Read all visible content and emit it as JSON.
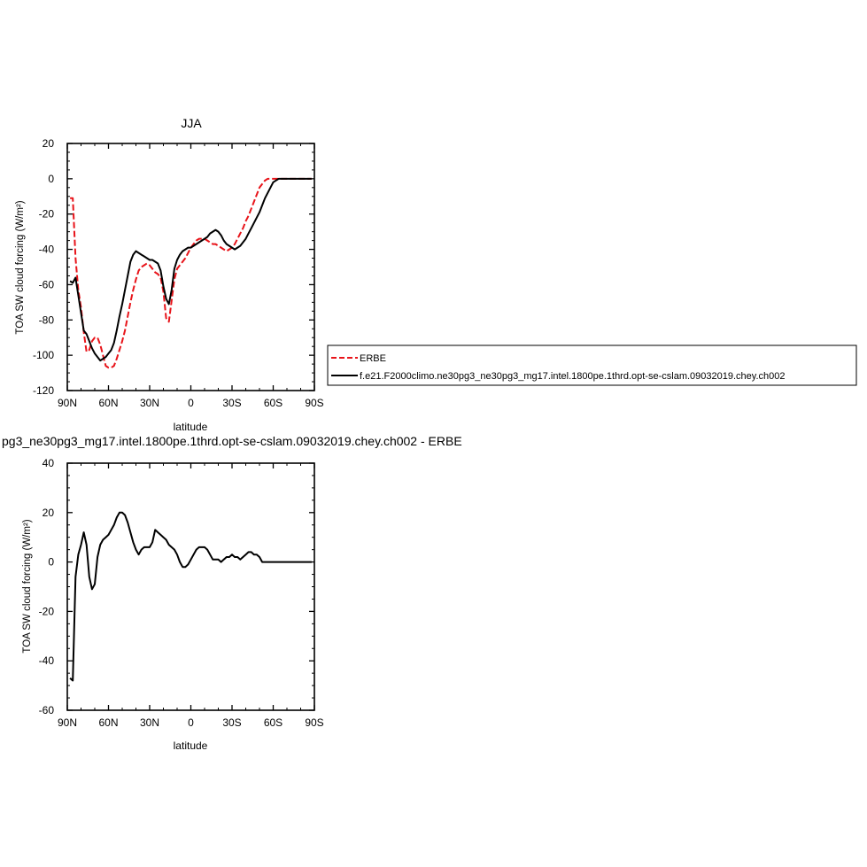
{
  "chart_data": [
    {
      "type": "line",
      "title": "JJA",
      "xlabel": "latitude",
      "ylabel": "TOA SW cloud forcing (W/m²)",
      "xlim": [
        90,
        -90
      ],
      "ylim": [
        -120,
        20
      ],
      "x_ticks": [
        90,
        60,
        30,
        0,
        -30,
        -60,
        -90
      ],
      "x_tick_labels": [
        "90N",
        "60N",
        "30N",
        "0",
        "30S",
        "60S",
        "90S"
      ],
      "y_ticks": [
        20,
        0,
        -20,
        -40,
        -60,
        -80,
        -100,
        -120
      ],
      "y_tick_labels": [
        "20",
        "0",
        "-20",
        "-40",
        "-60",
        "-80",
        "-100",
        "-120"
      ],
      "legend_position": "right of plot",
      "series": [
        {
          "name": "ERBE",
          "color": "#e8141a",
          "dash": true,
          "x": [
            88,
            86,
            84,
            82,
            80,
            78,
            76,
            74,
            72,
            70,
            68,
            66,
            64,
            62,
            60,
            58,
            56,
            54,
            52,
            50,
            48,
            46,
            44,
            42,
            40,
            38,
            36,
            34,
            32,
            30,
            28,
            26,
            24,
            22,
            20,
            18,
            16,
            14,
            12,
            10,
            8,
            6,
            4,
            2,
            0,
            -2,
            -4,
            -6,
            -8,
            -10,
            -12,
            -14,
            -16,
            -18,
            -20,
            -22,
            -24,
            -26,
            -28,
            -30,
            -32,
            -34,
            -36,
            -38,
            -40,
            -42,
            -44,
            -46,
            -48,
            -50,
            -52,
            -54,
            -56,
            -58,
            -60,
            -62,
            -64,
            -66,
            -68,
            -70,
            -72,
            -74,
            -76,
            -78,
            -80,
            -82,
            -84,
            -86,
            -88
          ],
          "values": [
            -11,
            -11,
            -45,
            -63,
            -73,
            -87,
            -98,
            -97,
            -92,
            -90,
            -90,
            -94,
            -100,
            -106,
            -107,
            -107,
            -106,
            -102,
            -97,
            -92,
            -86,
            -78,
            -70,
            -63,
            -57,
            -52,
            -50,
            -49,
            -48,
            -49,
            -51,
            -53,
            -54,
            -56,
            -64,
            -79,
            -81,
            -69,
            -57,
            -51,
            -49,
            -47,
            -45,
            -42,
            -39,
            -37,
            -35,
            -34,
            -34,
            -34,
            -35,
            -36,
            -37,
            -37,
            -38,
            -39,
            -40,
            -41,
            -40,
            -39,
            -37,
            -34,
            -31,
            -28,
            -24,
            -21,
            -17,
            -13,
            -9,
            -5,
            -3,
            -1,
            0,
            0,
            0,
            0,
            0,
            0,
            0,
            0,
            0,
            0,
            0,
            0,
            0,
            0,
            0,
            0,
            0
          ]
        },
        {
          "name": "f.e21.F2000climo.ne30pg3_ne30pg3_mg17.intel.1800pe.1thrd.opt-se-cslam.09032019.chey.ch002",
          "color": "#000000",
          "dash": false,
          "x": [
            88,
            86,
            84,
            82,
            80,
            78,
            76,
            74,
            72,
            70,
            68,
            66,
            64,
            62,
            60,
            58,
            56,
            54,
            52,
            50,
            48,
            46,
            44,
            42,
            40,
            38,
            36,
            34,
            32,
            30,
            28,
            26,
            24,
            22,
            20,
            18,
            16,
            14,
            12,
            10,
            8,
            6,
            4,
            2,
            0,
            -2,
            -4,
            -6,
            -8,
            -10,
            -12,
            -14,
            -16,
            -18,
            -20,
            -22,
            -24,
            -26,
            -28,
            -30,
            -32,
            -34,
            -36,
            -38,
            -40,
            -42,
            -44,
            -46,
            -48,
            -50,
            -52,
            -54,
            -56,
            -58,
            -60,
            -62,
            -64,
            -66,
            -68,
            -70,
            -72,
            -74,
            -76,
            -78,
            -80,
            -82,
            -84,
            -86,
            -88
          ],
          "values": [
            -58,
            -59,
            -56,
            -66,
            -76,
            -86,
            -88,
            -92,
            -96,
            -99,
            -101,
            -103,
            -102,
            -101,
            -99,
            -97,
            -93,
            -86,
            -78,
            -71,
            -63,
            -55,
            -47,
            -43,
            -41,
            -42,
            -43,
            -44,
            -45,
            -46,
            -46,
            -47,
            -48,
            -52,
            -61,
            -68,
            -71,
            -63,
            -51,
            -46,
            -43,
            -41,
            -40,
            -39,
            -39,
            -38,
            -37,
            -36,
            -35,
            -34,
            -33,
            -31,
            -30,
            -29,
            -30,
            -32,
            -35,
            -37,
            -38,
            -39,
            -40,
            -39,
            -38,
            -36,
            -34,
            -31,
            -28,
            -25,
            -22,
            -19,
            -15,
            -11,
            -8,
            -5,
            -2,
            -1,
            0,
            0,
            0,
            0,
            0,
            0,
            0,
            0,
            0,
            0,
            0,
            0,
            0
          ]
        }
      ]
    },
    {
      "type": "line",
      "title": "pg3_ne30pg3_mg17.intel.1800pe.1thrd.opt-se-cslam.09032019.chey.ch002 - ERBE",
      "xlabel": "latitude",
      "ylabel": "TOA SW cloud forcing (W/m²)",
      "xlim": [
        90,
        -90
      ],
      "ylim": [
        -60,
        40
      ],
      "x_ticks": [
        90,
        60,
        30,
        0,
        -30,
        -60,
        -90
      ],
      "x_tick_labels": [
        "90N",
        "60N",
        "30N",
        "0",
        "30S",
        "60S",
        "90S"
      ],
      "y_ticks": [
        40,
        20,
        0,
        -20,
        -40,
        -60
      ],
      "y_tick_labels": [
        "40",
        "20",
        "0",
        "-20",
        "-40",
        "-60"
      ],
      "series": [
        {
          "color": "#000000",
          "x": [
            88,
            86,
            84,
            82,
            80,
            78,
            76,
            74,
            72,
            70,
            68,
            66,
            64,
            62,
            60,
            58,
            56,
            54,
            52,
            50,
            48,
            46,
            44,
            42,
            40,
            38,
            36,
            34,
            32,
            30,
            28,
            26,
            24,
            22,
            20,
            18,
            16,
            14,
            12,
            10,
            8,
            6,
            4,
            2,
            0,
            -2,
            -4,
            -6,
            -8,
            -10,
            -12,
            -14,
            -16,
            -18,
            -20,
            -22,
            -24,
            -26,
            -28,
            -30,
            -32,
            -34,
            -36,
            -38,
            -40,
            -42,
            -44,
            -46,
            -48,
            -50,
            -52,
            -54,
            -56,
            -58,
            -60,
            -62,
            -64,
            -66,
            -68,
            -70,
            -72,
            -74,
            -76,
            -78,
            -80,
            -82,
            -84,
            -86,
            -88
          ],
          "values": [
            -47,
            -48,
            -6,
            3,
            7,
            12,
            7,
            -6,
            -11,
            -9,
            2,
            7,
            9,
            10,
            11,
            13,
            15,
            18,
            20,
            20,
            19,
            16,
            12,
            8,
            5,
            3,
            5,
            6,
            6,
            6,
            8,
            13,
            12,
            11,
            10,
            9,
            7,
            6,
            5,
            3,
            0,
            -2,
            -2,
            -1,
            1,
            3,
            5,
            6,
            6,
            6,
            5,
            3,
            1,
            1,
            1,
            0,
            1,
            2,
            2,
            3,
            2,
            2,
            1,
            2,
            3,
            4,
            4,
            3,
            3,
            2,
            0,
            0,
            0,
            0,
            0,
            0,
            0,
            0,
            0,
            0,
            0,
            0,
            0,
            0,
            0,
            0,
            0,
            0,
            0
          ]
        }
      ]
    }
  ]
}
